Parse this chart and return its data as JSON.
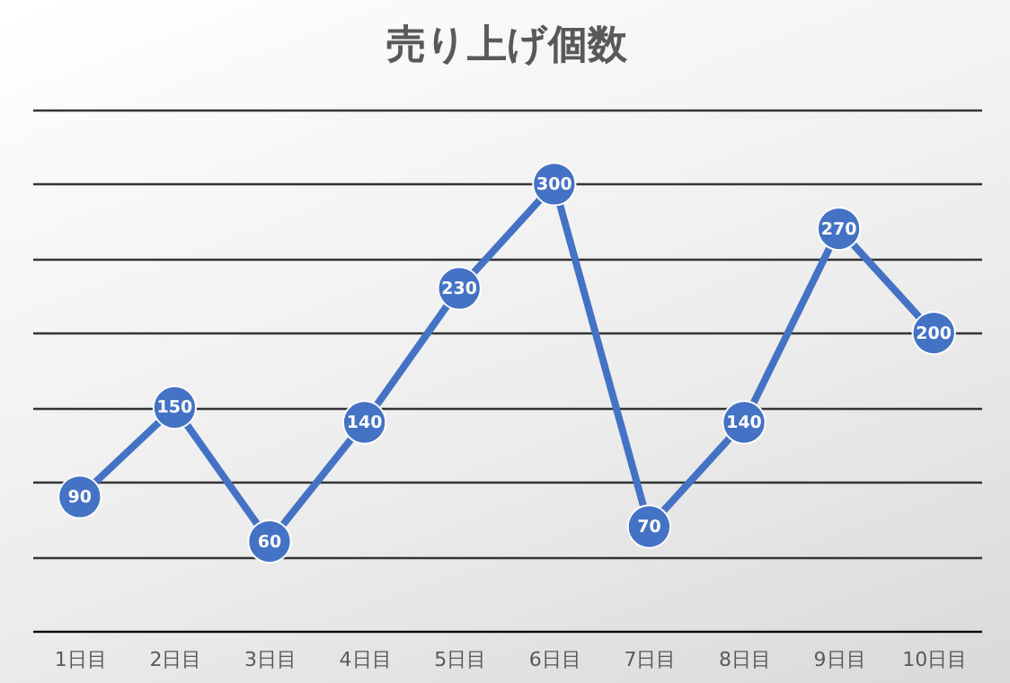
{
  "chart_data": {
    "type": "line",
    "title": "売り上げ個数",
    "categories": [
      "1日目",
      "2日目",
      "3日目",
      "4日目",
      "5日目",
      "6日目",
      "7日目",
      "8日目",
      "9日目",
      "10日目"
    ],
    "series": [
      {
        "color": "#4472c4",
        "values": [
          90,
          150,
          60,
          140,
          230,
          300,
          70,
          140,
          270,
          200
        ]
      }
    ],
    "ylim": [
      0,
      350
    ],
    "yticks": [
      {
        "value": 0,
        "label": null
      },
      {
        "value": 50,
        "label": null
      },
      {
        "value": 100,
        "label": null
      },
      {
        "value": 150,
        "label": null
      },
      {
        "value": 200,
        "label": null
      },
      {
        "value": 250,
        "label": null
      },
      {
        "value": 300,
        "label": null
      },
      {
        "value": 350,
        "label": null
      }
    ],
    "tick_labels": "x",
    "grid": "y",
    "marker": "circle",
    "line_style": "solid",
    "data_labels": true
  }
}
